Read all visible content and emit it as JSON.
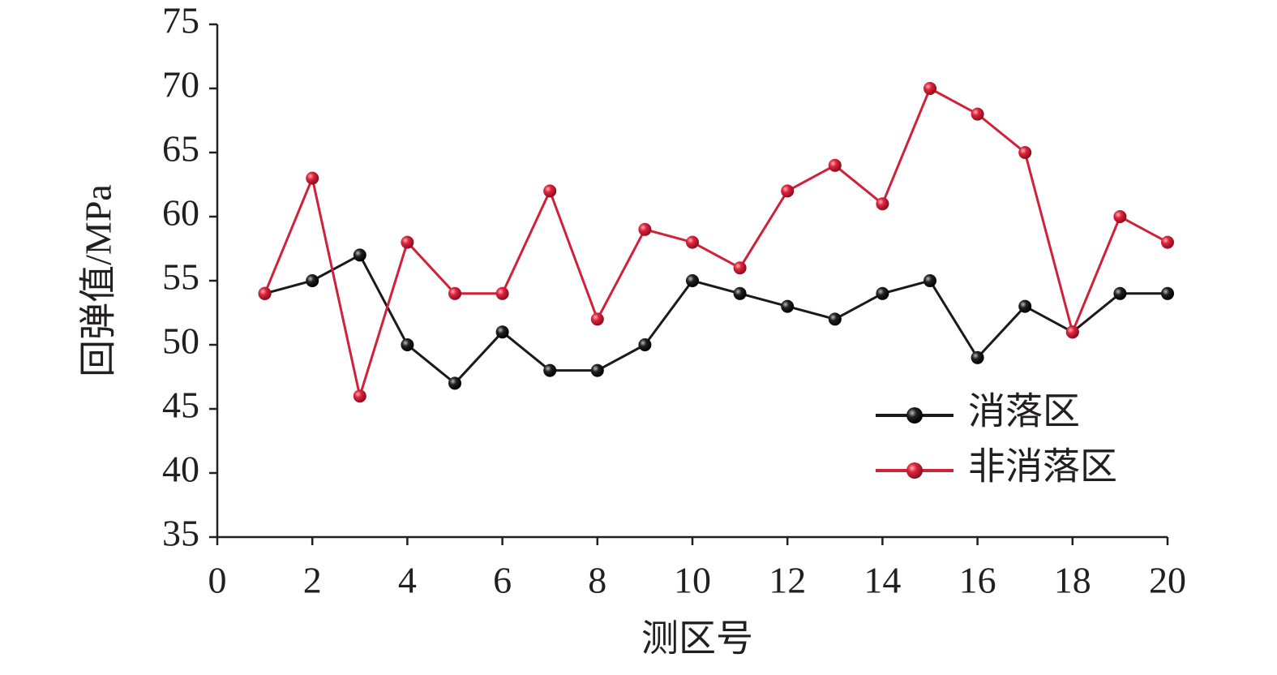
{
  "chart_data": {
    "type": "line",
    "x_label": "测区号",
    "y_label": "回弹值/MPa",
    "x": [
      1,
      2,
      3,
      4,
      5,
      6,
      7,
      8,
      9,
      10,
      11,
      12,
      13,
      14,
      15,
      16,
      17,
      18,
      19,
      20
    ],
    "series": [
      {
        "name": "消落区",
        "color": "#1a1a1a",
        "values": [
          54,
          55,
          57,
          50,
          47,
          51,
          48,
          48,
          50,
          55,
          54,
          53,
          52,
          54,
          55,
          49,
          53,
          51,
          54,
          54
        ]
      },
      {
        "name": "非消落区",
        "color": "#d0213a",
        "values": [
          54,
          63,
          46,
          58,
          54,
          54,
          62,
          52,
          59,
          58,
          56,
          62,
          64,
          61,
          70,
          68,
          65,
          51,
          60,
          58
        ]
      }
    ],
    "xlim": [
      0,
      20
    ],
    "xticks": [
      0,
      2,
      4,
      6,
      8,
      10,
      12,
      14,
      16,
      18,
      20
    ],
    "ylim": [
      35,
      75
    ],
    "yticks": [
      35,
      40,
      45,
      50,
      55,
      60,
      65,
      70,
      75
    ],
    "legend": "right"
  }
}
